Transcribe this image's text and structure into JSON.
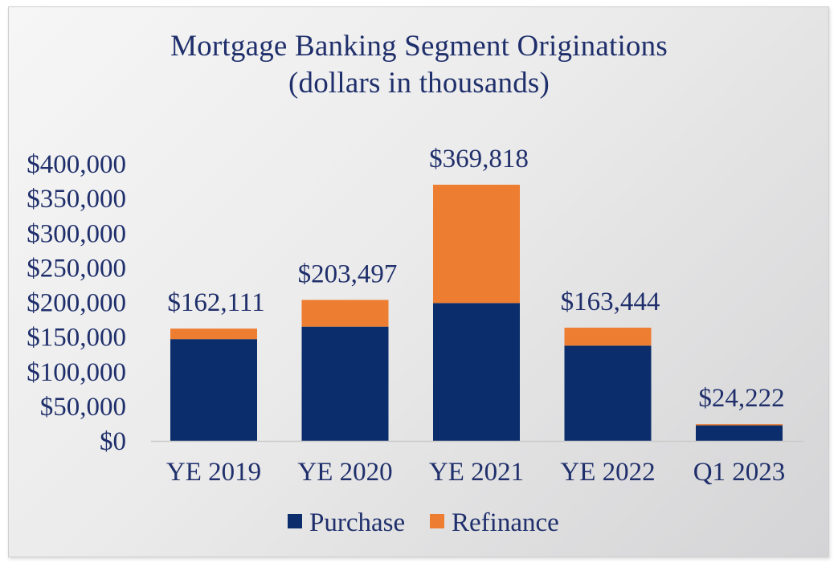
{
  "chart_data": {
    "type": "bar",
    "stacked": true,
    "title": "Mortgage Banking Segment Originations",
    "subtitle": "(dollars in thousands)",
    "categories": [
      "YE 2019",
      "YE 2020",
      "YE 2021",
      "YE 2022",
      "Q1 2023"
    ],
    "series": [
      {
        "name": "Purchase",
        "color": "#0b2d6b",
        "values": [
          147000,
          165000,
          199000,
          137500,
          22500
        ]
      },
      {
        "name": "Refinance",
        "color": "#ed7d31",
        "values": [
          15111,
          38497,
          170818,
          25944,
          1722
        ]
      }
    ],
    "total_labels": [
      "$162,111",
      "$203,497",
      "$369,818",
      "$163,444",
      "$24,222"
    ],
    "y_ticks": [
      0,
      50000,
      100000,
      150000,
      200000,
      250000,
      300000,
      350000,
      400000
    ],
    "y_tick_labels": [
      "$0",
      "$50,000",
      "$100,000",
      "$150,000",
      "$200,000",
      "$250,000",
      "$300,000",
      "$350,000",
      "$400,000"
    ],
    "ylim": [
      0,
      400000
    ],
    "xlabel": "",
    "ylabel": "",
    "grid": false,
    "legend_position": "bottom",
    "text_color": "#1f2f6b"
  }
}
